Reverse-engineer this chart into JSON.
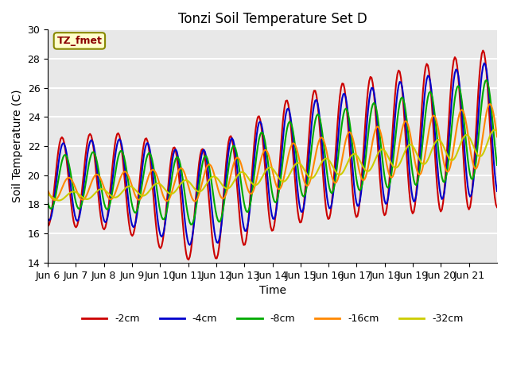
{
  "title": "Tonzi Soil Temperature Set D",
  "xlabel": "Time",
  "ylabel": "Soil Temperature (C)",
  "ylim": [
    14,
    30
  ],
  "annotation_text": "TZ_fmet",
  "annotation_color": "#8B0000",
  "annotation_bg": "#FFFFCC",
  "series_colors": {
    "-2cm": "#CC0000",
    "-4cm": "#0000CC",
    "-8cm": "#00AA00",
    "-16cm": "#FF8800",
    "-32cm": "#CCCC00"
  },
  "x_tick_labels": [
    "Jun 6",
    "Jun 7",
    "Jun 8",
    "Jun 9",
    "Jun 10",
    "Jun 11",
    "Jun 12",
    "Jun 13",
    "Jun 14",
    "Jun 15",
    "Jun 16",
    "Jun 17",
    "Jun 18",
    "Jun 19",
    "Jun 20",
    "Jun 21"
  ],
  "background_color": "#E8E8E8",
  "grid_color": "#FFFFFF",
  "line_width": 1.5
}
